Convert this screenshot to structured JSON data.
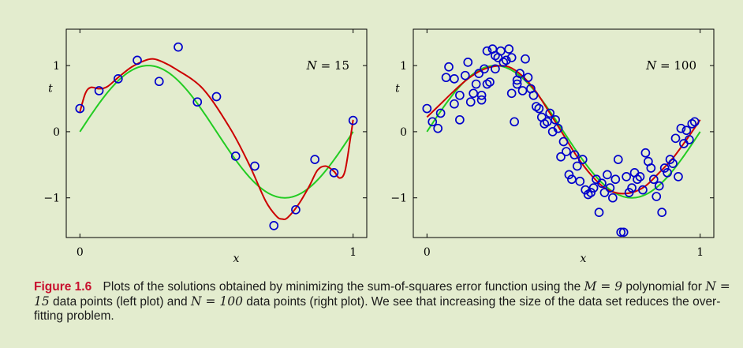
{
  "chart_data": [
    {
      "type": "scatter",
      "title": "",
      "annotation_label": "N",
      "annotation_value": "15",
      "xlabel": "x",
      "ylabel": "t",
      "xlim": [
        -0.05,
        1.05
      ],
      "ylim": [
        -1.6,
        1.55
      ],
      "xticks": [
        0,
        1
      ],
      "xtick_labels": [
        "0",
        "1"
      ],
      "yticks": [
        -1,
        0,
        1
      ],
      "ytick_labels": [
        "−1",
        "0",
        "1"
      ],
      "grid": false,
      "series": [
        {
          "kind": "points",
          "color": "#0000cc",
          "x": [
            0.0,
            0.07,
            0.14,
            0.21,
            0.29,
            0.36,
            0.43,
            0.5,
            0.57,
            0.64,
            0.71,
            0.79,
            0.86,
            0.93,
            1.0
          ],
          "y": [
            0.35,
            0.62,
            0.8,
            1.08,
            0.76,
            1.28,
            0.45,
            0.53,
            -0.37,
            -0.52,
            -1.42,
            -1.18,
            -0.42,
            -0.62,
            0.17
          ]
        },
        {
          "kind": "true_function",
          "color": "#22cc22"
        },
        {
          "kind": "fit",
          "color": "#cc0000",
          "x": [
            0.0,
            0.02,
            0.04,
            0.07,
            0.1,
            0.14,
            0.19,
            0.24,
            0.27,
            0.3,
            0.35,
            0.45,
            0.55,
            0.62,
            0.68,
            0.72,
            0.74,
            0.76,
            0.8,
            0.84,
            0.87,
            0.9,
            0.93,
            0.95,
            0.97,
            0.99,
            1.0
          ],
          "y": [
            0.3,
            0.58,
            0.67,
            0.65,
            0.68,
            0.82,
            0.98,
            1.08,
            1.1,
            1.06,
            0.95,
            0.65,
            0.05,
            -0.5,
            -1.05,
            -1.28,
            -1.32,
            -1.3,
            -1.1,
            -0.82,
            -0.58,
            -0.52,
            -0.6,
            -0.7,
            -0.6,
            -0.1,
            0.18
          ]
        }
      ]
    },
    {
      "type": "scatter",
      "title": "",
      "annotation_label": "N",
      "annotation_value": "100",
      "xlabel": "x",
      "ylabel": "t",
      "xlim": [
        -0.05,
        1.05
      ],
      "ylim": [
        -1.6,
        1.55
      ],
      "xticks": [
        0,
        1
      ],
      "xtick_labels": [
        "0",
        "1"
      ],
      "yticks": [
        -1,
        0,
        1
      ],
      "ytick_labels": [
        "−1",
        "0",
        "1"
      ],
      "grid": false,
      "series": [
        {
          "kind": "points",
          "color": "#0000cc",
          "x": [
            0.0,
            0.02,
            0.04,
            0.05,
            0.07,
            0.08,
            0.1,
            0.1,
            0.12,
            0.12,
            0.14,
            0.15,
            0.16,
            0.17,
            0.18,
            0.19,
            0.2,
            0.2,
            0.21,
            0.22,
            0.22,
            0.23,
            0.24,
            0.25,
            0.25,
            0.26,
            0.27,
            0.28,
            0.29,
            0.3,
            0.31,
            0.31,
            0.32,
            0.33,
            0.33,
            0.34,
            0.35,
            0.36,
            0.37,
            0.38,
            0.39,
            0.4,
            0.41,
            0.42,
            0.43,
            0.44,
            0.45,
            0.46,
            0.47,
            0.48,
            0.49,
            0.5,
            0.51,
            0.52,
            0.53,
            0.54,
            0.55,
            0.56,
            0.57,
            0.58,
            0.59,
            0.6,
            0.61,
            0.62,
            0.63,
            0.64,
            0.65,
            0.66,
            0.67,
            0.68,
            0.69,
            0.7,
            0.71,
            0.72,
            0.73,
            0.74,
            0.75,
            0.76,
            0.77,
            0.78,
            0.79,
            0.8,
            0.81,
            0.82,
            0.83,
            0.84,
            0.85,
            0.86,
            0.87,
            0.88,
            0.89,
            0.9,
            0.91,
            0.92,
            0.93,
            0.94,
            0.95,
            0.96,
            0.97,
            0.98
          ],
          "y": [
            0.35,
            0.15,
            0.05,
            0.28,
            0.82,
            0.98,
            0.8,
            0.42,
            0.55,
            0.18,
            0.85,
            1.05,
            0.45,
            0.58,
            0.72,
            0.88,
            0.55,
            0.48,
            0.95,
            0.72,
            1.22,
            0.75,
            1.25,
            0.95,
            1.15,
            1.12,
            1.22,
            1.05,
            1.08,
            1.25,
            1.12,
            0.58,
            0.15,
            0.78,
            0.72,
            0.88,
            0.62,
            1.1,
            0.82,
            0.65,
            0.55,
            0.38,
            0.35,
            0.22,
            0.12,
            0.15,
            0.28,
            0.0,
            0.18,
            0.05,
            -0.38,
            -0.15,
            -0.3,
            -0.65,
            -0.72,
            -0.35,
            -0.52,
            -0.75,
            -0.42,
            -0.88,
            -0.95,
            -0.92,
            -0.85,
            -0.72,
            -1.22,
            -0.78,
            -0.92,
            -0.65,
            -0.85,
            -1.0,
            -0.72,
            -0.42,
            -1.52,
            -1.52,
            -0.68,
            -0.92,
            -0.85,
            -0.62,
            -0.72,
            -0.68,
            -0.88,
            -0.32,
            -0.45,
            -0.55,
            -0.72,
            -0.98,
            -0.82,
            -1.22,
            -0.55,
            -0.62,
            -0.42,
            -0.48,
            -0.1,
            -0.68,
            0.05,
            -0.18,
            0.02,
            -0.12,
            0.12,
            0.15
          ]
        },
        {
          "kind": "true_function",
          "color": "#22cc22"
        },
        {
          "kind": "fit",
          "color": "#cc0000",
          "x": [
            0.0,
            0.05,
            0.1,
            0.15,
            0.2,
            0.25,
            0.3,
            0.35,
            0.4,
            0.45,
            0.5,
            0.55,
            0.6,
            0.65,
            0.7,
            0.75,
            0.8,
            0.85,
            0.9,
            0.95,
            1.0
          ],
          "y": [
            0.22,
            0.42,
            0.62,
            0.8,
            0.93,
            0.99,
            0.98,
            0.84,
            0.6,
            0.28,
            -0.05,
            -0.38,
            -0.65,
            -0.85,
            -0.93,
            -0.92,
            -0.82,
            -0.62,
            -0.4,
            -0.12,
            0.18
          ]
        }
      ]
    }
  ],
  "caption": {
    "figure_label": "Figure 1.6",
    "text_1": "Plots of the solutions obtained by minimizing the sum-of-squares error function using the",
    "math_1": "M = 9",
    "text_2": "polynomial for",
    "math_2": "N = 15",
    "text_3": "data points (left plot) and",
    "math_3": "N = 100",
    "text_4": "data points (right plot). We see that increasing the size of the data set reduces the over-fitting problem."
  }
}
